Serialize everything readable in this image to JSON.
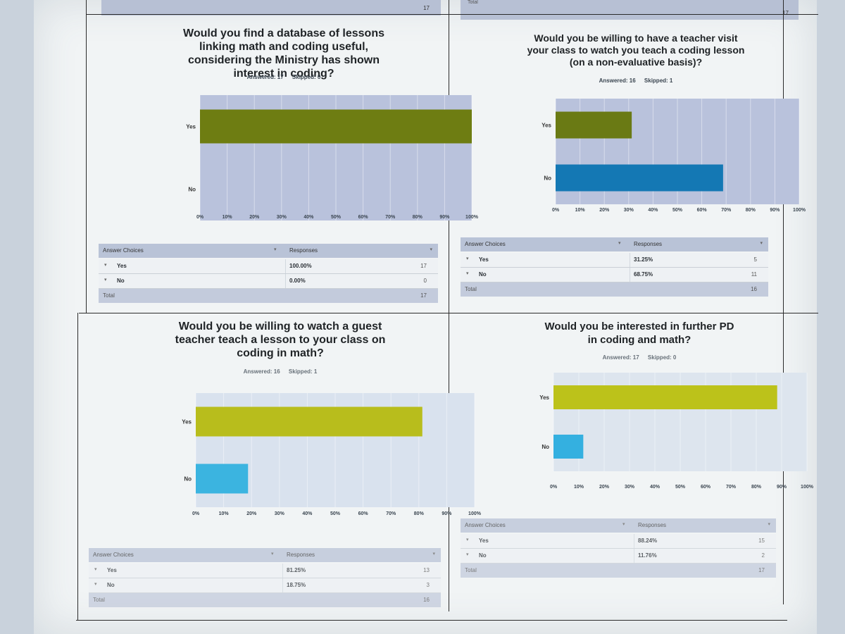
{
  "top_strip": {
    "left_count": "17",
    "right_label": "Total",
    "right_count": "17"
  },
  "panels": [
    {
      "question": "Would you find a database of lessons linking math and coding useful, considering the Ministry has shown interest in coding?",
      "answered_label": "Answered: 17",
      "skipped_label": "Skipped: 0",
      "table": {
        "col1": "Answer Choices",
        "col2": "Responses",
        "rows": [
          {
            "label": "Yes",
            "percent": "100.00%",
            "count": "17"
          },
          {
            "label": "No",
            "percent": "0.00%",
            "count": "0"
          }
        ],
        "total_label": "Total",
        "total_count": "17"
      }
    },
    {
      "question": "Would you be willing to have a teacher visit your class to watch you teach a coding lesson (on a non-evaluative basis)?",
      "answered_label": "Answered: 16",
      "skipped_label": "Skipped: 1",
      "table": {
        "col1": "Answer Choices",
        "col2": "Responses",
        "rows": [
          {
            "label": "Yes",
            "percent": "31.25%",
            "count": "5"
          },
          {
            "label": "No",
            "percent": "68.75%",
            "count": "11"
          }
        ],
        "total_label": "Total",
        "total_count": "16"
      }
    },
    {
      "question": "Would you be willing to watch a guest teacher teach a lesson to your class on coding in math?",
      "answered_label": "Answered: 16",
      "skipped_label": "Skipped: 1",
      "table": {
        "col1": "Answer Choices",
        "col2": "Responses",
        "rows": [
          {
            "label": "Yes",
            "percent": "81.25%",
            "count": "13"
          },
          {
            "label": "No",
            "percent": "18.75%",
            "count": "3"
          }
        ],
        "total_label": "Total",
        "total_count": "16"
      }
    },
    {
      "question": "Would you be interested in further PD in coding and math?",
      "answered_label": "Answered: 17",
      "skipped_label": "Skipped: 0",
      "table": {
        "col1": "Answer Choices",
        "col2": "Responses",
        "rows": [
          {
            "label": "Yes",
            "percent": "88.24%",
            "count": "15"
          },
          {
            "label": "No",
            "percent": "11.76%",
            "count": "2"
          }
        ],
        "total_label": "Total",
        "total_count": "17"
      }
    }
  ],
  "chart_data": [
    {
      "type": "bar",
      "orientation": "horizontal",
      "categories": [
        "Yes",
        "No"
      ],
      "values": [
        100.0,
        0.0
      ],
      "colors": [
        "#6e7d12",
        "#1f78b4"
      ],
      "xlim": [
        0,
        100
      ],
      "xticks": [
        "0%",
        "10%",
        "20%",
        "30%",
        "40%",
        "50%",
        "60%",
        "70%",
        "80%",
        "90%",
        "100%"
      ],
      "grid": true,
      "plot_bg": "#b9c2dc"
    },
    {
      "type": "bar",
      "orientation": "horizontal",
      "categories": [
        "Yes",
        "No"
      ],
      "values": [
        31.25,
        68.75
      ],
      "colors": [
        "#6a7a14",
        "#1478b4"
      ],
      "xlim": [
        0,
        100
      ],
      "xticks": [
        "0%",
        "10%",
        "20%",
        "30%",
        "40%",
        "50%",
        "60%",
        "70%",
        "80%",
        "90%",
        "100%"
      ],
      "grid": true,
      "plot_bg": "#b9c2dc"
    },
    {
      "type": "bar",
      "orientation": "horizontal",
      "categories": [
        "Yes",
        "No"
      ],
      "values": [
        81.25,
        18.75
      ],
      "colors": [
        "#b8bd1c",
        "#3bb4e0"
      ],
      "xlim": [
        0,
        100
      ],
      "xticks": [
        "0%",
        "10%",
        "20%",
        "30%",
        "40%",
        "50%",
        "60%",
        "70%",
        "80%",
        "90%",
        "100%"
      ],
      "grid": true,
      "plot_bg": "#d9e2ee"
    },
    {
      "type": "bar",
      "orientation": "horizontal",
      "categories": [
        "Yes",
        "No"
      ],
      "values": [
        88.24,
        11.76
      ],
      "colors": [
        "#bcc21a",
        "#34b0e0"
      ],
      "xlim": [
        0,
        100
      ],
      "xticks": [
        "0%",
        "10%",
        "20%",
        "30%",
        "40%",
        "50%",
        "60%",
        "70%",
        "80%",
        "90%",
        "100%"
      ],
      "grid": true,
      "plot_bg": "#dde5ee"
    }
  ]
}
